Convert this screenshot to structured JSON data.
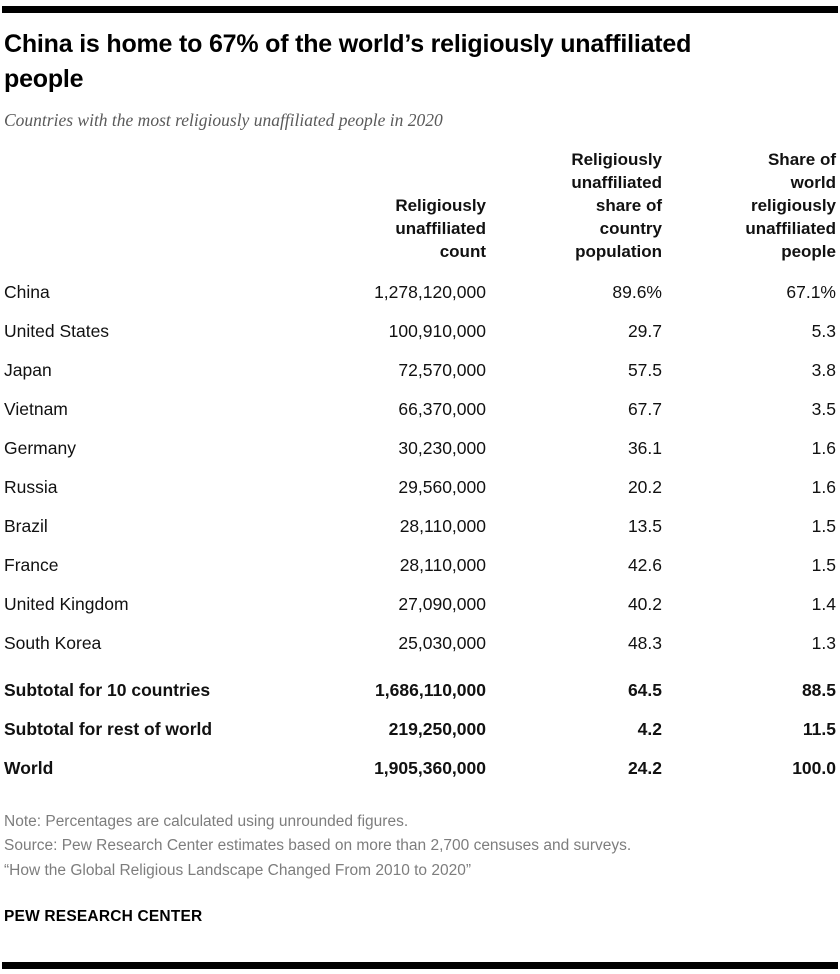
{
  "colors": {
    "bar": "#000000",
    "subtitle_text": "#5a5a5a",
    "note_text": "#7d7d7d"
  },
  "header": {
    "title": "China is home to 67% of the world’s religiously unaffiliated people",
    "subtitle": "Countries with the most religiously unaffiliated people in 2020"
  },
  "chart_data": {
    "type": "table",
    "title": "China is home to 67% of the world’s religiously unaffiliated people",
    "subtitle": "Countries with the most religiously unaffiliated people in 2020",
    "columns": {
      "country": "",
      "count": "Religiously\nunaffiliated\ncount",
      "country_share": "Religiously\nunaffiliated\nshare of\ncountry\npopulation",
      "world_share": "Share of\nworld\nreligiously\nunaffiliated\npeople"
    },
    "rows": [
      {
        "country": "China",
        "count": "1,278,120,000",
        "country_share": "89.6%",
        "world_share": "67.1%"
      },
      {
        "country": "United States",
        "count": "100,910,000",
        "country_share": "29.7",
        "world_share": "5.3"
      },
      {
        "country": "Japan",
        "count": "72,570,000",
        "country_share": "57.5",
        "world_share": "3.8"
      },
      {
        "country": "Vietnam",
        "count": "66,370,000",
        "country_share": "67.7",
        "world_share": "3.5"
      },
      {
        "country": "Germany",
        "count": "30,230,000",
        "country_share": "36.1",
        "world_share": "1.6"
      },
      {
        "country": "Russia",
        "count": "29,560,000",
        "country_share": "20.2",
        "world_share": "1.6"
      },
      {
        "country": "Brazil",
        "count": "28,110,000",
        "country_share": "13.5",
        "world_share": "1.5"
      },
      {
        "country": "France",
        "count": "28,110,000",
        "country_share": "42.6",
        "world_share": "1.5"
      },
      {
        "country": "United Kingdom",
        "count": "27,090,000",
        "country_share": "40.2",
        "world_share": "1.4"
      },
      {
        "country": "South Korea",
        "count": "25,030,000",
        "country_share": "48.3",
        "world_share": "1.3"
      }
    ],
    "summary_rows": [
      {
        "label": "Subtotal for 10 countries",
        "count": "1,686,110,000",
        "country_share": "64.5",
        "world_share": "88.5"
      },
      {
        "label": "Subtotal for rest of world",
        "count": "219,250,000",
        "country_share": "4.2",
        "world_share": "11.5"
      },
      {
        "label": "World",
        "count": "1,905,360,000",
        "country_share": "24.2",
        "world_share": "100.0"
      }
    ]
  },
  "footer": {
    "note": "Note: Percentages are calculated using unrounded figures.",
    "source": "Source: Pew Research Center estimates based on more than 2,700 censuses and surveys.",
    "report_title": "“How the Global Religious Landscape Changed From 2010 to 2020”",
    "brand": "PEW RESEARCH CENTER"
  }
}
